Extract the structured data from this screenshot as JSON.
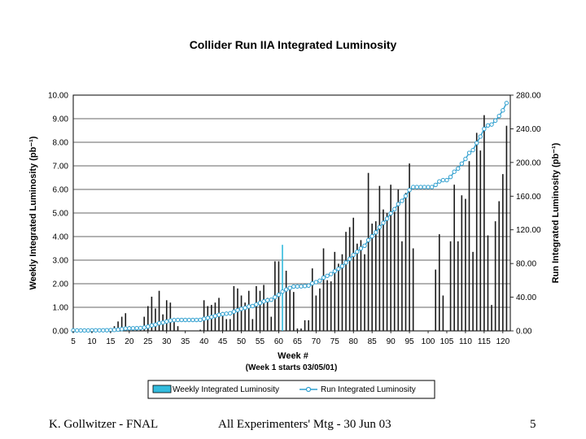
{
  "chart_data": {
    "type": "bar+line",
    "title": "Collider Run IIA Integrated Luminosity",
    "xlabel": "Week  #",
    "xlabel_sub": "(Week 1 starts 03/05/01)",
    "ylabel_left": "Weekly Integrated Luminosity (pb⁻¹)",
    "ylabel_right": "Run Integrated Luminosity (pb⁻¹)",
    "x_range": [
      5,
      122
    ],
    "x_ticks": [
      5,
      10,
      15,
      20,
      25,
      30,
      35,
      40,
      45,
      50,
      55,
      60,
      65,
      70,
      75,
      80,
      85,
      90,
      95,
      100,
      105,
      110,
      115,
      120
    ],
    "y_left_range": [
      0,
      10
    ],
    "y_left_ticks": [
      "0.00",
      "1.00",
      "2.00",
      "3.00",
      "4.00",
      "5.00",
      "6.00",
      "7.00",
      "8.00",
      "9.00",
      "10.00"
    ],
    "y_right_range": [
      0,
      280
    ],
    "y_right_ticks": [
      "0.00",
      "40.00",
      "80.00",
      "120.00",
      "160.00",
      "200.00",
      "240.00",
      "280.00"
    ],
    "legend": [
      "Weekly Integrated Luminosity",
      "Run Integrated Luminosity"
    ],
    "colors": {
      "bars": "#1a1a1a",
      "bar_highlight": "#33bbdd",
      "line": "#2f9fcf",
      "grid": "#333333"
    },
    "weeks": [
      5,
      6,
      7,
      8,
      9,
      10,
      11,
      12,
      13,
      14,
      15,
      16,
      17,
      18,
      19,
      20,
      21,
      22,
      23,
      24,
      25,
      26,
      27,
      28,
      29,
      30,
      31,
      32,
      33,
      34,
      35,
      36,
      37,
      38,
      39,
      40,
      41,
      42,
      43,
      44,
      45,
      46,
      47,
      48,
      49,
      50,
      51,
      52,
      53,
      54,
      55,
      56,
      57,
      58,
      59,
      60,
      61,
      62,
      63,
      64,
      65,
      66,
      67,
      68,
      69,
      70,
      71,
      72,
      73,
      74,
      75,
      76,
      77,
      78,
      79,
      80,
      81,
      82,
      83,
      84,
      85,
      86,
      87,
      88,
      89,
      90,
      91,
      92,
      93,
      94,
      95,
      96,
      97,
      98,
      99,
      100,
      101,
      102,
      103,
      104,
      105,
      106,
      107,
      108,
      109,
      110,
      111,
      112,
      113,
      114,
      115,
      116,
      117,
      118,
      119,
      120,
      121
    ],
    "weekly": [
      0.05,
      0,
      0.05,
      0,
      0,
      0.05,
      0.1,
      0,
      0.05,
      0.1,
      0.05,
      0.2,
      0.4,
      0.6,
      0.75,
      0.2,
      0.1,
      0.1,
      0.2,
      0.6,
      1.05,
      1.45,
      0.95,
      1.7,
      0.7,
      1.3,
      1.2,
      0.5,
      0.2,
      0,
      0,
      0,
      0,
      0,
      0.05,
      1.3,
      1.05,
      1.1,
      1.2,
      1.4,
      0.8,
      0.5,
      0.5,
      1.9,
      1.8,
      1.5,
      1.2,
      1.7,
      0.5,
      1.9,
      1.7,
      1.95,
      1.4,
      0.6,
      2.95,
      2.95,
      3.65,
      2.55,
      1.9,
      1.65,
      0.1,
      0.1,
      0.45,
      0.45,
      2.65,
      1.5,
      1.8,
      3.5,
      2.15,
      2.1,
      3.35,
      2.85,
      3.25,
      4.2,
      4.4,
      4.8,
      3.7,
      3.85,
      3.25,
      6.7,
      4.55,
      4.65,
      6.15,
      5.15,
      5.0,
      6.2,
      5.05,
      6.0,
      3.8,
      5.85,
      7.1,
      3.5,
      0,
      0,
      0,
      0,
      0,
      2.6,
      4.1,
      1.5,
      0,
      3.8,
      6.2,
      3.8,
      5.75,
      5.6,
      7.2,
      3.35,
      8.4,
      7.65,
      9.15,
      4.05,
      1.1,
      4.65,
      5.5,
      6.65,
      8.7
    ],
    "highlight_weeks": [
      61,
      99,
      100,
      101
    ],
    "cumulative": [
      0.5,
      0.5,
      0.5,
      0.5,
      0.5,
      0.6,
      0.7,
      0.7,
      0.7,
      0.8,
      0.9,
      1.1,
      1.5,
      2.1,
      2.8,
      3.0,
      3.1,
      3.2,
      3.4,
      4.0,
      5.1,
      6.5,
      7.4,
      9.1,
      9.8,
      11.1,
      12.3,
      12.8,
      13.0,
      13.0,
      13.0,
      13.0,
      13.0,
      13.0,
      13.1,
      14.4,
      15.4,
      16.5,
      17.7,
      19.1,
      19.9,
      20.4,
      20.9,
      22.8,
      24.6,
      26.1,
      27.3,
      29.0,
      29.5,
      31.4,
      33.1,
      35.0,
      36.4,
      37.0,
      40.0,
      42.9,
      46.6,
      49.1,
      51.0,
      52.7,
      52.8,
      52.9,
      53.3,
      53.8,
      56.4,
      57.9,
      59.7,
      63.2,
      65.4,
      67.5,
      70.8,
      73.7,
      76.9,
      81.1,
      85.5,
      90.3,
      94.0,
      97.9,
      101.1,
      107.8,
      112.4,
      117.0,
      123.2,
      128.3,
      133.3,
      139.5,
      144.6,
      150.6,
      154.4,
      160.2,
      167.3,
      170.8,
      170.8,
      170.8,
      170.8,
      170.8,
      170.8,
      173.4,
      177.5,
      179.0,
      179.0,
      182.8,
      189.0,
      192.8,
      198.6,
      204.2,
      211.4,
      214.7,
      223.1,
      230.8,
      239.9,
      244.0,
      245.1,
      249.7,
      255.2,
      261.9,
      270.6
    ]
  },
  "footer": {
    "left": "K. Gollwitzer - FNAL",
    "center": "All Experimenters' Mtg - 30 Jun 03",
    "right": "5"
  }
}
